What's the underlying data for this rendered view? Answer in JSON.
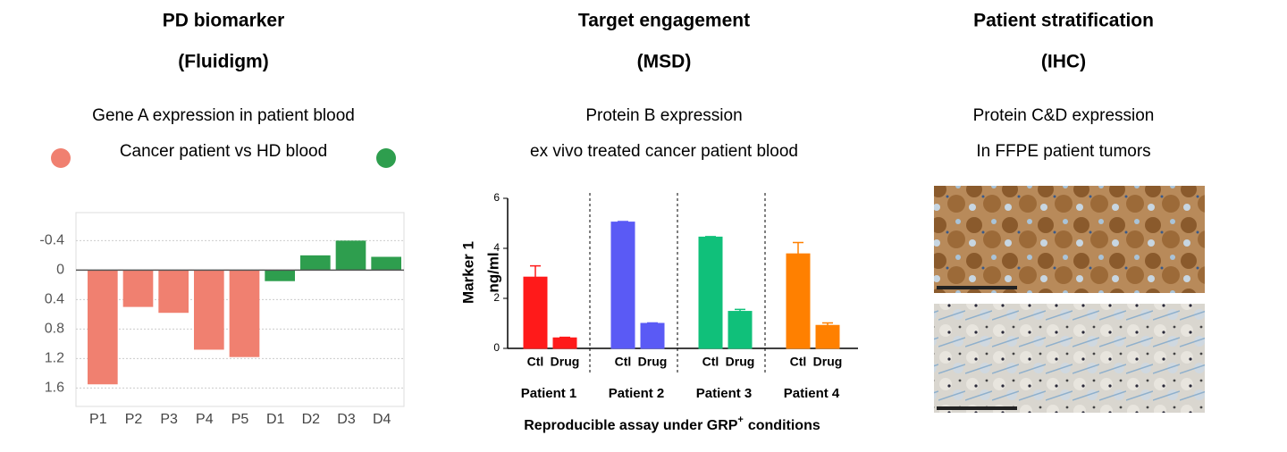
{
  "panels": [
    {
      "title": "PD biomarker",
      "subtitle": "(Fluidigm)",
      "lines": [
        "Gene A expression in patient blood",
        "Cancer patient vs HD blood"
      ]
    },
    {
      "title": "Target engagement",
      "subtitle": "(MSD)",
      "lines": [
        "Protein B expression",
        "ex vivo treated cancer patient blood"
      ]
    },
    {
      "title": "Patient stratification",
      "subtitle": "(IHC)",
      "lines": [
        "Protein C&D expression",
        "In FFPE patient tumors"
      ]
    }
  ],
  "chart_data": [
    {
      "type": "bar",
      "categories": [
        "P1",
        "P2",
        "P3",
        "P4",
        "P5",
        "D1",
        "D2",
        "D3",
        "D4"
      ],
      "values": [
        1.55,
        0.5,
        0.58,
        1.08,
        1.18,
        0.15,
        -0.2,
        -0.4,
        -0.18
      ],
      "colors": [
        "#f08070",
        "#f08070",
        "#f08070",
        "#f08070",
        "#f08070",
        "#2e9e4e",
        "#2e9e4e",
        "#2e9e4e",
        "#2e9e4e"
      ],
      "legend_colors": [
        "#f08070",
        "#2e9e4e"
      ],
      "ylim": [
        -0.78,
        1.85
      ],
      "y_inverted": true,
      "yticks": [
        -0.4,
        0,
        0.4,
        0.8,
        1.2,
        1.6
      ],
      "grid": true
    },
    {
      "type": "grouped_bar",
      "categories": [
        "Ctl",
        "Drug"
      ],
      "groups": [
        {
          "name": "Patient 1",
          "color": "#ff1a1a",
          "values": [
            2.85,
            0.42
          ],
          "errors": [
            0.45,
            0.02
          ]
        },
        {
          "name": "Patient 2",
          "color": "#5a5af5",
          "values": [
            5.05,
            1.0
          ],
          "errors": [
            0.02,
            0.02
          ]
        },
        {
          "name": "Patient 3",
          "color": "#10c07a",
          "values": [
            4.45,
            1.48
          ],
          "errors": [
            0.02,
            0.08
          ]
        },
        {
          "name": "Patient 4",
          "color": "#ff8000",
          "values": [
            3.78,
            0.92
          ],
          "errors": [
            0.45,
            0.1
          ]
        }
      ],
      "ylabel": [
        "Marker 1",
        "ng/ml"
      ],
      "ylim": [
        0,
        6
      ],
      "yticks": [
        0,
        2,
        4,
        6
      ],
      "xlabel": "Reproducible assay under GRP",
      "xlabel_sup": "+",
      "xlabel_end": "conditions"
    }
  ]
}
